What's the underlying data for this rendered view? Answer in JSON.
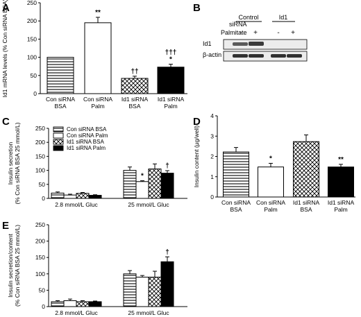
{
  "panel_labels": {
    "A": "A",
    "B": "B",
    "C": "C",
    "D": "D",
    "E": "E"
  },
  "colors": {
    "ink": "#000000",
    "white": "#ffffff",
    "blot_bg": "#ececec",
    "band": "#303030"
  },
  "blot": {
    "siRNA_label": "siRNA",
    "palmitate_label": "Palmitate",
    "group_control": "Control",
    "group_id1": "Id1",
    "lane_signs": [
      "-",
      "+",
      "-",
      "+"
    ],
    "row_labels": [
      "Id1",
      "β-actin"
    ]
  },
  "chart_data": [
    {
      "panel": "A",
      "type": "bar",
      "ylabel": "Id1 mRNA levels (% Con siRNA BSA)",
      "ylim": [
        0,
        250
      ],
      "yticks": [
        "0",
        "50",
        "100",
        "150",
        "200",
        "250"
      ],
      "categories": [
        [
          "Con siRNA",
          "BSA"
        ],
        [
          "Con siRNA",
          "Palm"
        ],
        [
          "Id1 siRNA",
          "BSA"
        ],
        [
          "Id1 siRNA",
          "Palm"
        ]
      ],
      "values": [
        100,
        195,
        42,
        73
      ],
      "errors": [
        0,
        15,
        6,
        8
      ],
      "patterns": [
        "hlines",
        "white",
        "cross",
        "black"
      ],
      "annotations": [
        [
          "",
          ""
        ],
        [
          "",
          "**"
        ],
        [
          "",
          "††"
        ],
        [
          "†††",
          "*"
        ]
      ]
    },
    {
      "panel": "C",
      "type": "bar",
      "ylabel": [
        "Insulin secretion",
        "(% Con siRNA BSA 25 mmol/L)"
      ],
      "ylim": [
        0,
        250
      ],
      "yticks": [
        "0",
        "50",
        "100",
        "150",
        "200",
        "250"
      ],
      "groups": [
        "2.8 mmol/L Gluc",
        "25 mmol/L Gluc"
      ],
      "legend": [
        "Con siRNA BSA",
        "Con siRNA Palm",
        "Id1 siRNA BSA",
        "Id1 siRNA Palm"
      ],
      "series": [
        {
          "name": "Con siRNA BSA",
          "pattern": "hlines",
          "values": [
            19,
            100
          ],
          "errors": [
            4,
            12
          ],
          "annotations": [
            "",
            ""
          ]
        },
        {
          "name": "Con siRNA Palm",
          "pattern": "white",
          "values": [
            12,
            60
          ],
          "errors": [
            3,
            3
          ],
          "annotations": [
            "",
            "*"
          ]
        },
        {
          "name": "Id1 siRNA BSA",
          "pattern": "cross",
          "values": [
            18,
            105
          ],
          "errors": [
            3,
            18
          ],
          "annotations": [
            "",
            ""
          ]
        },
        {
          "name": "Id1 siRNA Palm",
          "pattern": "black",
          "values": [
            11,
            90
          ],
          "errors": [
            2,
            9
          ],
          "annotations": [
            "",
            "†"
          ]
        }
      ]
    },
    {
      "panel": "D",
      "type": "bar",
      "ylabel": "Insulin content (μg/well)",
      "ylim": [
        0,
        4
      ],
      "yticks": [
        "0",
        "1",
        "2",
        "3",
        "4"
      ],
      "categories": [
        [
          "Con siRNA",
          "BSA"
        ],
        [
          "Con siRNA",
          "Palm"
        ],
        [
          "Id1 siRNA",
          "BSA"
        ],
        [
          "Id1 siRNA",
          "Palm"
        ]
      ],
      "values": [
        2.22,
        1.48,
        2.73,
        1.48
      ],
      "errors": [
        0.22,
        0.18,
        0.33,
        0.13
      ],
      "patterns": [
        "hlines",
        "white",
        "cross",
        "black"
      ],
      "annotations": [
        [
          "",
          ""
        ],
        [
          "",
          "*"
        ],
        [
          "",
          ""
        ],
        [
          "",
          "**"
        ]
      ]
    },
    {
      "panel": "E",
      "type": "bar",
      "ylabel": [
        "Insulin secretion/content",
        "(% Con siRNA BSA 25 mmol/L)"
      ],
      "ylim": [
        0,
        250
      ],
      "yticks": [
        "0",
        "50",
        "100",
        "150",
        "200",
        "250"
      ],
      "groups": [
        "2.8 mmol/L Gluc",
        "25 mmol/L Gluc"
      ],
      "series": [
        {
          "name": "Con siRNA BSA",
          "pattern": "hlines",
          "values": [
            15,
            100
          ],
          "errors": [
            3,
            10
          ],
          "annotations": [
            "",
            ""
          ]
        },
        {
          "name": "Con siRNA Palm",
          "pattern": "white",
          "values": [
            18,
            90
          ],
          "errors": [
            5,
            5
          ],
          "annotations": [
            "",
            ""
          ]
        },
        {
          "name": "Id1 siRNA BSA",
          "pattern": "cross",
          "values": [
            15,
            90
          ],
          "errors": [
            3,
            18
          ],
          "annotations": [
            "",
            ""
          ]
        },
        {
          "name": "Id1 siRNA Palm",
          "pattern": "black",
          "values": [
            15,
            137
          ],
          "errors": [
            2,
            15
          ],
          "annotations": [
            "",
            "†"
          ]
        }
      ]
    }
  ]
}
